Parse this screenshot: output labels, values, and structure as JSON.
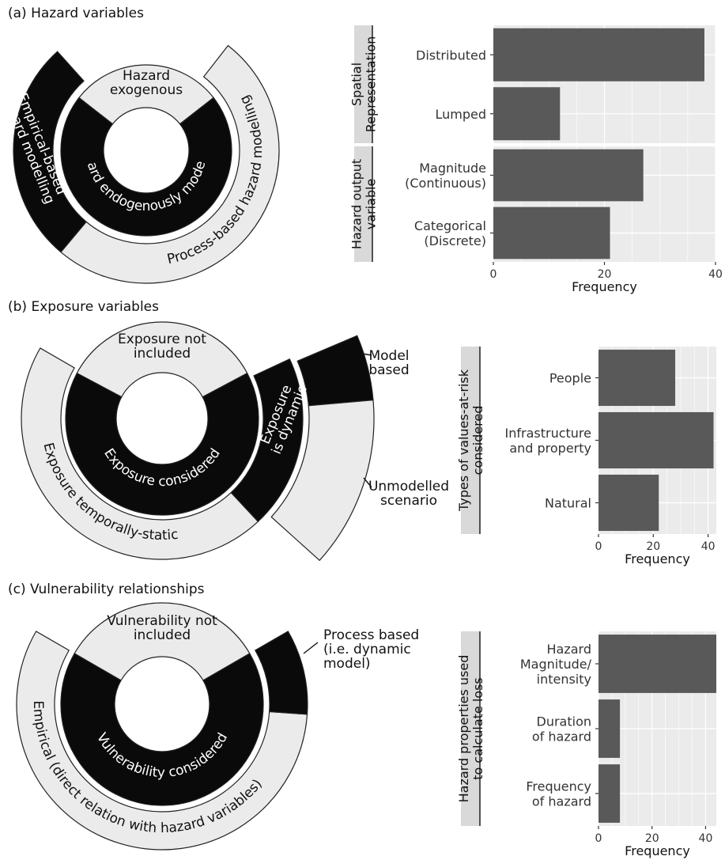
{
  "panels": [
    {
      "title": "(a) Hazard variables",
      "sunburst": {
        "inner": [
          {
            "label": "Hazard\nexogenous",
            "color": "light"
          },
          {
            "label": "Hazard endogenously modelled",
            "color": "dark"
          }
        ],
        "outer": [
          {
            "label": "Empirical-based\nhazard modelling",
            "color": "dark"
          },
          {
            "label": "Process-based hazard modelling",
            "color": "light"
          }
        ]
      }
    },
    {
      "title": "(b) Exposure variables",
      "sunburst": {
        "inner": [
          {
            "label": "Exposure not\nincluded",
            "color": "light"
          },
          {
            "label": "Exposure considered",
            "color": "dark"
          }
        ],
        "middle": [
          {
            "label": "Exposure temporally-static",
            "color": "light"
          },
          {
            "label": "Exposure\nis dynamic",
            "color": "dark"
          }
        ],
        "outer": [
          {
            "label": "Model\nbased",
            "color": "dark"
          },
          {
            "label": "Unmodelled\nscenario",
            "color": "light"
          }
        ]
      }
    },
    {
      "title": "(c) Vulnerability relationships",
      "sunburst": {
        "inner": [
          {
            "label": "Vulnerability not\nincluded",
            "color": "light"
          },
          {
            "label": "Vulnerability considered",
            "color": "dark"
          }
        ],
        "outer": [
          {
            "label": "Empirical (direct relation with hazard variables)",
            "color": "light"
          },
          {
            "label": "Process based\n(i.e. dynamic\nmodel)",
            "color": "dark"
          }
        ]
      }
    }
  ],
  "chart_data": [
    {
      "type": "bar",
      "orientation": "horizontal",
      "xlabel": "Frequency",
      "xlim": [
        0,
        40
      ],
      "xticks": [
        0,
        20,
        40
      ],
      "facets": [
        {
          "strip": "Spatial\nRepresentation",
          "categories": [
            "Distributed",
            "Lumped"
          ],
          "values": [
            38,
            12
          ]
        },
        {
          "strip": "Hazard output\nvariable",
          "categories": [
            "Magnitude\n(Continuous)",
            "Categorical\n(Discrete)"
          ],
          "values": [
            27,
            21
          ]
        }
      ]
    },
    {
      "type": "bar",
      "orientation": "horizontal",
      "xlabel": "Frequency",
      "xlim": [
        0,
        43
      ],
      "xticks": [
        0,
        20,
        40
      ],
      "facets": [
        {
          "strip": "Types of values-at-risk\nconsidered",
          "categories": [
            "People",
            "Infrastructure\nand property",
            "Natural"
          ],
          "values": [
            28,
            42,
            22
          ]
        }
      ]
    },
    {
      "type": "bar",
      "orientation": "horizontal",
      "xlabel": "Frequency",
      "xlim": [
        0,
        44
      ],
      "xticks": [
        0,
        20,
        40
      ],
      "facets": [
        {
          "strip": "Hazard properties used\nto calculate loss",
          "categories": [
            "Hazard\nMagnitude/\nintensity",
            "Duration\nof hazard",
            "Frequency\nof hazard"
          ],
          "values": [
            44,
            8,
            8
          ]
        }
      ]
    }
  ]
}
